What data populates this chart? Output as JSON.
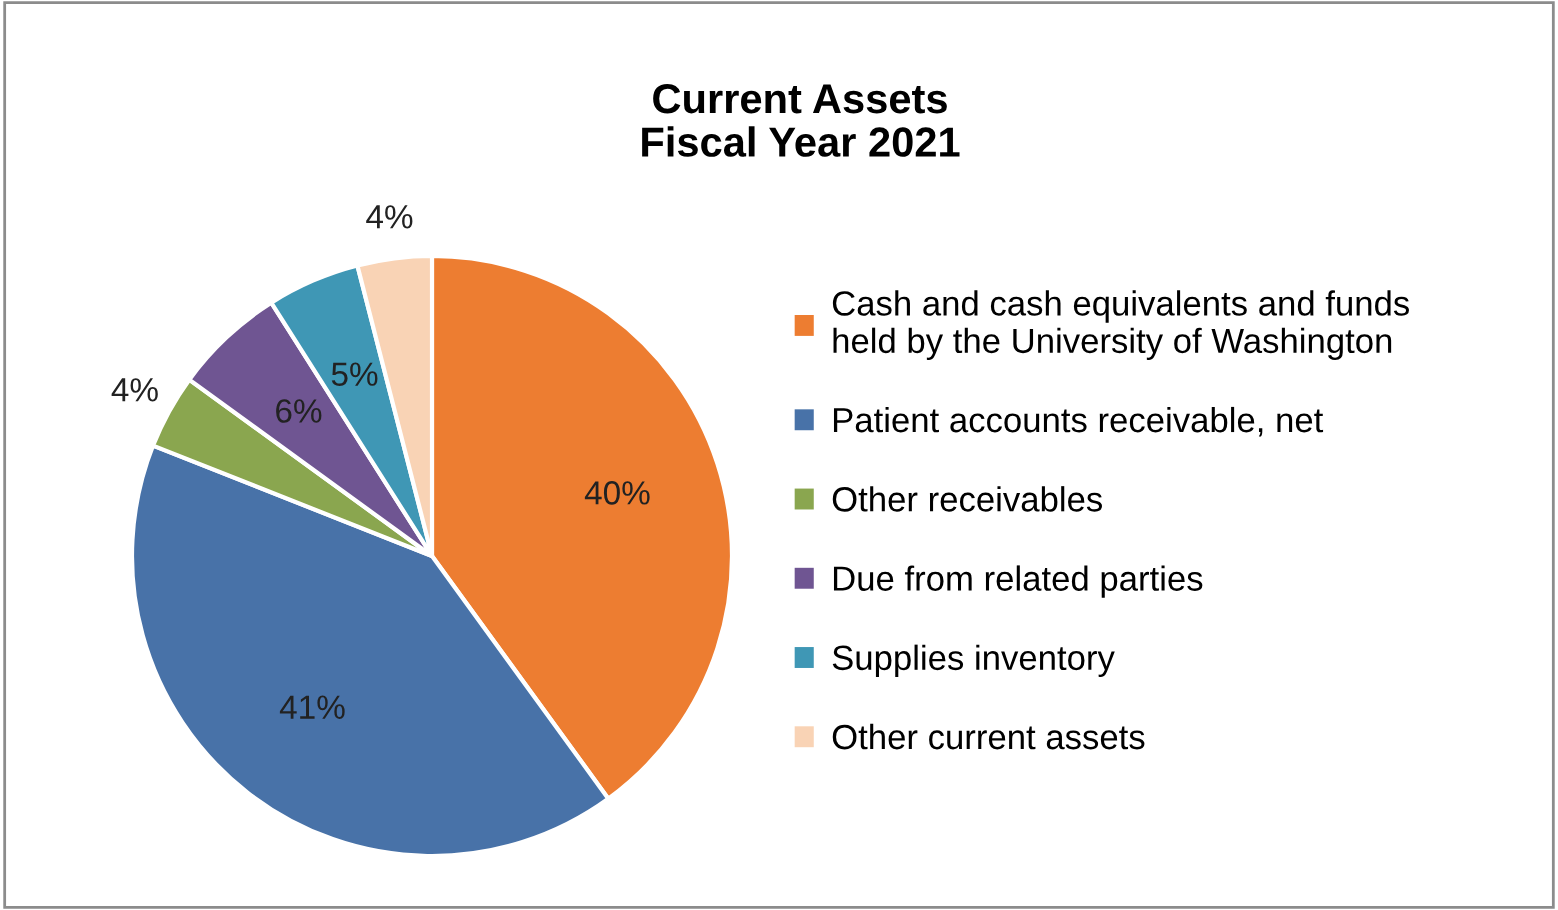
{
  "chart_data": {
    "type": "pie",
    "title": "Current Assets\nFiscal Year 2021",
    "categories": [
      "Cash and cash equivalents and funds\nheld by the University of Washington",
      "Patient accounts receivable, net",
      "Other receivables",
      "Due from related parties",
      "Supplies inventory",
      "Other current assets"
    ],
    "values": [
      40,
      41,
      4,
      6,
      5,
      4
    ],
    "colors": [
      "#ed7d31",
      "#4872a8",
      "#8aa64f",
      "#6f5592",
      "#3f97b5",
      "#f9d3b5"
    ],
    "value_labels": [
      "40%",
      "41%",
      "4%",
      "6%",
      "5%",
      "4%"
    ],
    "legend": "right"
  }
}
